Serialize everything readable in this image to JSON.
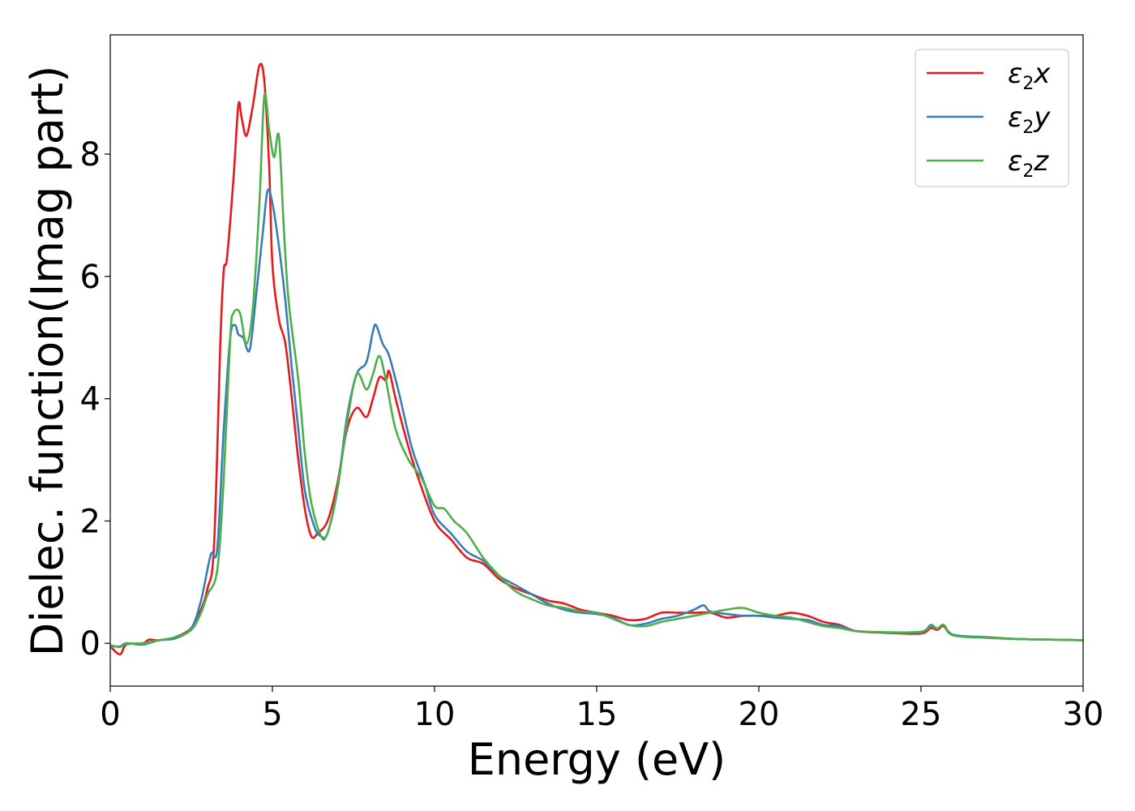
{
  "chart_data": {
    "type": "line",
    "title": "",
    "xlabel": "Energy (eV)",
    "ylabel": "Dielec. function(Imag part)",
    "xlim": [
      0,
      30
    ],
    "ylim": [
      -0.7,
      9.95
    ],
    "xticks": [
      0,
      5,
      10,
      15,
      20,
      25,
      30
    ],
    "yticks": [
      0,
      2,
      4,
      6,
      8
    ],
    "xtick_labels": [
      "0",
      "5",
      "10",
      "15",
      "20",
      "25",
      "30"
    ],
    "ytick_labels": [
      "0",
      "2",
      "4",
      "6",
      "8"
    ],
    "grid": false,
    "legend_position": "top-right",
    "series": [
      {
        "label": {
          "sym": "ε",
          "sub": "2",
          "tail": "x"
        },
        "color": "#e41a1c",
        "points": [
          [
            0,
            -0.05
          ],
          [
            0.3,
            -0.18
          ],
          [
            0.5,
            -0.02
          ],
          [
            1.0,
            0.0
          ],
          [
            1.2,
            0.06
          ],
          [
            1.5,
            0.05
          ],
          [
            2.0,
            0.1
          ],
          [
            2.5,
            0.25
          ],
          [
            2.8,
            0.55
          ],
          [
            3.0,
            0.9
          ],
          [
            3.2,
            1.6
          ],
          [
            3.4,
            5.0
          ],
          [
            3.5,
            6.1
          ],
          [
            3.6,
            6.3
          ],
          [
            3.8,
            7.6
          ],
          [
            3.95,
            8.8
          ],
          [
            4.05,
            8.6
          ],
          [
            4.2,
            8.3
          ],
          [
            4.4,
            8.8
          ],
          [
            4.6,
            9.45
          ],
          [
            4.75,
            9.2
          ],
          [
            4.9,
            7.8
          ],
          [
            5.0,
            6.2
          ],
          [
            5.2,
            5.3
          ],
          [
            5.4,
            4.9
          ],
          [
            5.6,
            4.0
          ],
          [
            5.8,
            3.0
          ],
          [
            6.0,
            2.2
          ],
          [
            6.2,
            1.75
          ],
          [
            6.4,
            1.8
          ],
          [
            6.7,
            2.0
          ],
          [
            7.0,
            2.6
          ],
          [
            7.3,
            3.5
          ],
          [
            7.6,
            3.85
          ],
          [
            7.9,
            3.7
          ],
          [
            8.1,
            4.0
          ],
          [
            8.3,
            4.35
          ],
          [
            8.5,
            4.3
          ],
          [
            8.6,
            4.45
          ],
          [
            8.8,
            4.0
          ],
          [
            9.2,
            3.2
          ],
          [
            9.5,
            2.7
          ],
          [
            10.0,
            2.0
          ],
          [
            10.5,
            1.7
          ],
          [
            11.0,
            1.4
          ],
          [
            11.5,
            1.3
          ],
          [
            12.0,
            1.05
          ],
          [
            12.5,
            0.9
          ],
          [
            13.0,
            0.8
          ],
          [
            13.5,
            0.7
          ],
          [
            14.0,
            0.65
          ],
          [
            14.5,
            0.55
          ],
          [
            15.0,
            0.5
          ],
          [
            15.5,
            0.45
          ],
          [
            16.0,
            0.38
          ],
          [
            16.5,
            0.4
          ],
          [
            17.0,
            0.5
          ],
          [
            17.5,
            0.5
          ],
          [
            18.0,
            0.5
          ],
          [
            18.5,
            0.5
          ],
          [
            19.0,
            0.42
          ],
          [
            19.5,
            0.45
          ],
          [
            20.0,
            0.45
          ],
          [
            20.5,
            0.45
          ],
          [
            21.0,
            0.5
          ],
          [
            21.5,
            0.45
          ],
          [
            22.0,
            0.35
          ],
          [
            22.5,
            0.3
          ],
          [
            23.0,
            0.2
          ],
          [
            24.0,
            0.17
          ],
          [
            25.0,
            0.16
          ],
          [
            25.3,
            0.25
          ],
          [
            25.5,
            0.22
          ],
          [
            25.7,
            0.28
          ],
          [
            26.0,
            0.13
          ],
          [
            27.0,
            0.1
          ],
          [
            28.0,
            0.07
          ],
          [
            29.0,
            0.06
          ],
          [
            30.0,
            0.05
          ]
        ]
      },
      {
        "label": {
          "sym": "ε",
          "sub": "2",
          "tail": "y"
        },
        "color": "#377eb8",
        "points": [
          [
            0,
            -0.05
          ],
          [
            0.3,
            -0.05
          ],
          [
            0.5,
            0.0
          ],
          [
            1.0,
            -0.02
          ],
          [
            1.5,
            0.05
          ],
          [
            2.0,
            0.08
          ],
          [
            2.5,
            0.25
          ],
          [
            2.8,
            0.7
          ],
          [
            3.1,
            1.45
          ],
          [
            3.3,
            1.55
          ],
          [
            3.5,
            3.5
          ],
          [
            3.7,
            5.0
          ],
          [
            3.85,
            5.2
          ],
          [
            3.95,
            5.05
          ],
          [
            4.1,
            5.0
          ],
          [
            4.3,
            4.8
          ],
          [
            4.5,
            5.7
          ],
          [
            4.7,
            6.7
          ],
          [
            4.85,
            7.4
          ],
          [
            5.0,
            7.2
          ],
          [
            5.2,
            6.5
          ],
          [
            5.4,
            5.6
          ],
          [
            5.6,
            4.5
          ],
          [
            5.8,
            3.5
          ],
          [
            6.0,
            2.5
          ],
          [
            6.3,
            1.9
          ],
          [
            6.5,
            1.75
          ],
          [
            6.7,
            1.8
          ],
          [
            7.0,
            2.5
          ],
          [
            7.3,
            3.7
          ],
          [
            7.6,
            4.4
          ],
          [
            7.9,
            4.6
          ],
          [
            8.1,
            5.1
          ],
          [
            8.2,
            5.2
          ],
          [
            8.4,
            4.9
          ],
          [
            8.6,
            4.7
          ],
          [
            8.9,
            4.1
          ],
          [
            9.3,
            3.2
          ],
          [
            9.7,
            2.6
          ],
          [
            10.0,
            2.1
          ],
          [
            10.5,
            1.8
          ],
          [
            11.0,
            1.5
          ],
          [
            11.5,
            1.35
          ],
          [
            12.0,
            1.1
          ],
          [
            12.5,
            0.95
          ],
          [
            13.0,
            0.8
          ],
          [
            13.5,
            0.65
          ],
          [
            14.0,
            0.55
          ],
          [
            14.5,
            0.5
          ],
          [
            15.0,
            0.48
          ],
          [
            15.5,
            0.42
          ],
          [
            16.0,
            0.3
          ],
          [
            16.5,
            0.32
          ],
          [
            17.0,
            0.4
          ],
          [
            17.5,
            0.45
          ],
          [
            18.0,
            0.55
          ],
          [
            18.3,
            0.62
          ],
          [
            18.5,
            0.52
          ],
          [
            19.0,
            0.48
          ],
          [
            19.5,
            0.45
          ],
          [
            20.0,
            0.45
          ],
          [
            20.5,
            0.42
          ],
          [
            21.0,
            0.4
          ],
          [
            21.5,
            0.38
          ],
          [
            22.0,
            0.3
          ],
          [
            22.5,
            0.28
          ],
          [
            23.0,
            0.2
          ],
          [
            24.0,
            0.18
          ],
          [
            25.0,
            0.18
          ],
          [
            25.3,
            0.3
          ],
          [
            25.5,
            0.24
          ],
          [
            25.7,
            0.3
          ],
          [
            26.0,
            0.14
          ],
          [
            27.0,
            0.1
          ],
          [
            28.0,
            0.07
          ],
          [
            29.0,
            0.06
          ],
          [
            30.0,
            0.05
          ]
        ]
      },
      {
        "label": {
          "sym": "ε",
          "sub": "2",
          "tail": "z"
        },
        "color": "#4daf4a",
        "points": [
          [
            0,
            -0.03
          ],
          [
            0.3,
            -0.06
          ],
          [
            0.5,
            -0.01
          ],
          [
            1.0,
            0.0
          ],
          [
            1.5,
            0.05
          ],
          [
            2.0,
            0.1
          ],
          [
            2.5,
            0.22
          ],
          [
            2.8,
            0.5
          ],
          [
            3.0,
            0.8
          ],
          [
            3.3,
            1.2
          ],
          [
            3.5,
            2.7
          ],
          [
            3.7,
            5.0
          ],
          [
            3.8,
            5.4
          ],
          [
            4.0,
            5.4
          ],
          [
            4.2,
            4.9
          ],
          [
            4.4,
            5.5
          ],
          [
            4.6,
            7.2
          ],
          [
            4.75,
            8.95
          ],
          [
            4.9,
            8.4
          ],
          [
            5.05,
            7.95
          ],
          [
            5.2,
            8.3
          ],
          [
            5.35,
            6.8
          ],
          [
            5.5,
            5.6
          ],
          [
            5.8,
            4.3
          ],
          [
            6.0,
            3.1
          ],
          [
            6.2,
            2.3
          ],
          [
            6.5,
            1.75
          ],
          [
            6.7,
            1.8
          ],
          [
            7.0,
            2.5
          ],
          [
            7.3,
            3.6
          ],
          [
            7.6,
            4.4
          ],
          [
            7.9,
            4.15
          ],
          [
            8.1,
            4.4
          ],
          [
            8.3,
            4.7
          ],
          [
            8.5,
            4.3
          ],
          [
            8.8,
            3.5
          ],
          [
            9.2,
            3.0
          ],
          [
            9.6,
            2.7
          ],
          [
            10.0,
            2.25
          ],
          [
            10.3,
            2.2
          ],
          [
            10.6,
            2.0
          ],
          [
            11.0,
            1.8
          ],
          [
            11.5,
            1.4
          ],
          [
            12.0,
            1.1
          ],
          [
            12.5,
            0.85
          ],
          [
            13.0,
            0.72
          ],
          [
            13.5,
            0.62
          ],
          [
            14.0,
            0.58
          ],
          [
            14.5,
            0.52
          ],
          [
            15.0,
            0.5
          ],
          [
            15.5,
            0.4
          ],
          [
            16.0,
            0.3
          ],
          [
            16.5,
            0.28
          ],
          [
            17.0,
            0.35
          ],
          [
            17.5,
            0.4
          ],
          [
            18.0,
            0.45
          ],
          [
            18.5,
            0.5
          ],
          [
            19.0,
            0.55
          ],
          [
            19.5,
            0.58
          ],
          [
            20.0,
            0.5
          ],
          [
            20.5,
            0.45
          ],
          [
            21.0,
            0.42
          ],
          [
            21.5,
            0.35
          ],
          [
            22.0,
            0.28
          ],
          [
            22.5,
            0.25
          ],
          [
            23.0,
            0.2
          ],
          [
            24.0,
            0.18
          ],
          [
            25.0,
            0.19
          ],
          [
            25.3,
            0.28
          ],
          [
            25.5,
            0.24
          ],
          [
            25.7,
            0.3
          ],
          [
            26.0,
            0.13
          ],
          [
            27.0,
            0.09
          ],
          [
            28.0,
            0.07
          ],
          [
            29.0,
            0.06
          ],
          [
            30.0,
            0.05
          ]
        ]
      }
    ]
  }
}
